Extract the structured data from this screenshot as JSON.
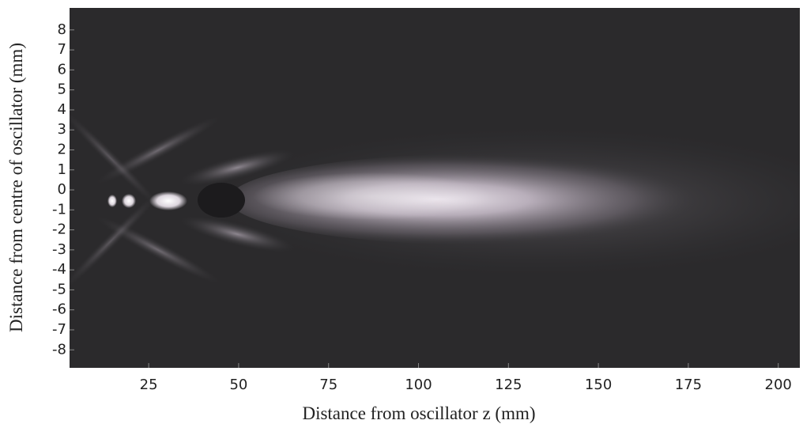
{
  "chart_data": {
    "type": "field-map",
    "xlabel": "Distance from oscillator z (mm)",
    "ylabel": "Distance from centre of oscillator (mm)",
    "xlim": [
      3,
      206
    ],
    "ylim": [
      -8.9,
      9.1
    ],
    "xticks": [
      25,
      50,
      75,
      100,
      125,
      150,
      175,
      200
    ],
    "yticks": [
      -8,
      -7,
      -6,
      -5,
      -4,
      -3,
      -2,
      -1,
      0,
      1,
      2,
      3,
      4,
      5,
      6,
      7,
      8
    ]
  }
}
